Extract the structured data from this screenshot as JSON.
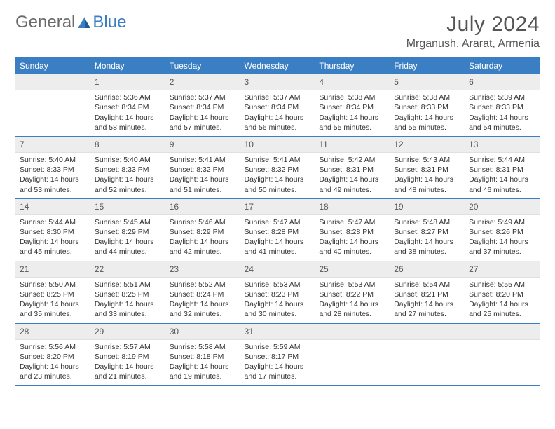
{
  "brand": {
    "part1": "General",
    "part2": "Blue"
  },
  "title": "July 2024",
  "location": "Mrganush, Ararat, Armenia",
  "colors": {
    "header_bg": "#3a7fc4",
    "header_text": "#ffffff",
    "daynum_bg": "#ededed",
    "row_divider": "#3a7fc4",
    "body_text": "#333333",
    "title_text": "#555555"
  },
  "daynames": [
    "Sunday",
    "Monday",
    "Tuesday",
    "Wednesday",
    "Thursday",
    "Friday",
    "Saturday"
  ],
  "weeks": [
    [
      {
        "n": "",
        "sr": "",
        "ss": "",
        "dl": ""
      },
      {
        "n": "1",
        "sr": "Sunrise: 5:36 AM",
        "ss": "Sunset: 8:34 PM",
        "dl": "Daylight: 14 hours and 58 minutes."
      },
      {
        "n": "2",
        "sr": "Sunrise: 5:37 AM",
        "ss": "Sunset: 8:34 PM",
        "dl": "Daylight: 14 hours and 57 minutes."
      },
      {
        "n": "3",
        "sr": "Sunrise: 5:37 AM",
        "ss": "Sunset: 8:34 PM",
        "dl": "Daylight: 14 hours and 56 minutes."
      },
      {
        "n": "4",
        "sr": "Sunrise: 5:38 AM",
        "ss": "Sunset: 8:34 PM",
        "dl": "Daylight: 14 hours and 55 minutes."
      },
      {
        "n": "5",
        "sr": "Sunrise: 5:38 AM",
        "ss": "Sunset: 8:33 PM",
        "dl": "Daylight: 14 hours and 55 minutes."
      },
      {
        "n": "6",
        "sr": "Sunrise: 5:39 AM",
        "ss": "Sunset: 8:33 PM",
        "dl": "Daylight: 14 hours and 54 minutes."
      }
    ],
    [
      {
        "n": "7",
        "sr": "Sunrise: 5:40 AM",
        "ss": "Sunset: 8:33 PM",
        "dl": "Daylight: 14 hours and 53 minutes."
      },
      {
        "n": "8",
        "sr": "Sunrise: 5:40 AM",
        "ss": "Sunset: 8:33 PM",
        "dl": "Daylight: 14 hours and 52 minutes."
      },
      {
        "n": "9",
        "sr": "Sunrise: 5:41 AM",
        "ss": "Sunset: 8:32 PM",
        "dl": "Daylight: 14 hours and 51 minutes."
      },
      {
        "n": "10",
        "sr": "Sunrise: 5:41 AM",
        "ss": "Sunset: 8:32 PM",
        "dl": "Daylight: 14 hours and 50 minutes."
      },
      {
        "n": "11",
        "sr": "Sunrise: 5:42 AM",
        "ss": "Sunset: 8:31 PM",
        "dl": "Daylight: 14 hours and 49 minutes."
      },
      {
        "n": "12",
        "sr": "Sunrise: 5:43 AM",
        "ss": "Sunset: 8:31 PM",
        "dl": "Daylight: 14 hours and 48 minutes."
      },
      {
        "n": "13",
        "sr": "Sunrise: 5:44 AM",
        "ss": "Sunset: 8:31 PM",
        "dl": "Daylight: 14 hours and 46 minutes."
      }
    ],
    [
      {
        "n": "14",
        "sr": "Sunrise: 5:44 AM",
        "ss": "Sunset: 8:30 PM",
        "dl": "Daylight: 14 hours and 45 minutes."
      },
      {
        "n": "15",
        "sr": "Sunrise: 5:45 AM",
        "ss": "Sunset: 8:29 PM",
        "dl": "Daylight: 14 hours and 44 minutes."
      },
      {
        "n": "16",
        "sr": "Sunrise: 5:46 AM",
        "ss": "Sunset: 8:29 PM",
        "dl": "Daylight: 14 hours and 42 minutes."
      },
      {
        "n": "17",
        "sr": "Sunrise: 5:47 AM",
        "ss": "Sunset: 8:28 PM",
        "dl": "Daylight: 14 hours and 41 minutes."
      },
      {
        "n": "18",
        "sr": "Sunrise: 5:47 AM",
        "ss": "Sunset: 8:28 PM",
        "dl": "Daylight: 14 hours and 40 minutes."
      },
      {
        "n": "19",
        "sr": "Sunrise: 5:48 AM",
        "ss": "Sunset: 8:27 PM",
        "dl": "Daylight: 14 hours and 38 minutes."
      },
      {
        "n": "20",
        "sr": "Sunrise: 5:49 AM",
        "ss": "Sunset: 8:26 PM",
        "dl": "Daylight: 14 hours and 37 minutes."
      }
    ],
    [
      {
        "n": "21",
        "sr": "Sunrise: 5:50 AM",
        "ss": "Sunset: 8:25 PM",
        "dl": "Daylight: 14 hours and 35 minutes."
      },
      {
        "n": "22",
        "sr": "Sunrise: 5:51 AM",
        "ss": "Sunset: 8:25 PM",
        "dl": "Daylight: 14 hours and 33 minutes."
      },
      {
        "n": "23",
        "sr": "Sunrise: 5:52 AM",
        "ss": "Sunset: 8:24 PM",
        "dl": "Daylight: 14 hours and 32 minutes."
      },
      {
        "n": "24",
        "sr": "Sunrise: 5:53 AM",
        "ss": "Sunset: 8:23 PM",
        "dl": "Daylight: 14 hours and 30 minutes."
      },
      {
        "n": "25",
        "sr": "Sunrise: 5:53 AM",
        "ss": "Sunset: 8:22 PM",
        "dl": "Daylight: 14 hours and 28 minutes."
      },
      {
        "n": "26",
        "sr": "Sunrise: 5:54 AM",
        "ss": "Sunset: 8:21 PM",
        "dl": "Daylight: 14 hours and 27 minutes."
      },
      {
        "n": "27",
        "sr": "Sunrise: 5:55 AM",
        "ss": "Sunset: 8:20 PM",
        "dl": "Daylight: 14 hours and 25 minutes."
      }
    ],
    [
      {
        "n": "28",
        "sr": "Sunrise: 5:56 AM",
        "ss": "Sunset: 8:20 PM",
        "dl": "Daylight: 14 hours and 23 minutes."
      },
      {
        "n": "29",
        "sr": "Sunrise: 5:57 AM",
        "ss": "Sunset: 8:19 PM",
        "dl": "Daylight: 14 hours and 21 minutes."
      },
      {
        "n": "30",
        "sr": "Sunrise: 5:58 AM",
        "ss": "Sunset: 8:18 PM",
        "dl": "Daylight: 14 hours and 19 minutes."
      },
      {
        "n": "31",
        "sr": "Sunrise: 5:59 AM",
        "ss": "Sunset: 8:17 PM",
        "dl": "Daylight: 14 hours and 17 minutes."
      },
      {
        "n": "",
        "sr": "",
        "ss": "",
        "dl": ""
      },
      {
        "n": "",
        "sr": "",
        "ss": "",
        "dl": ""
      },
      {
        "n": "",
        "sr": "",
        "ss": "",
        "dl": ""
      }
    ]
  ]
}
